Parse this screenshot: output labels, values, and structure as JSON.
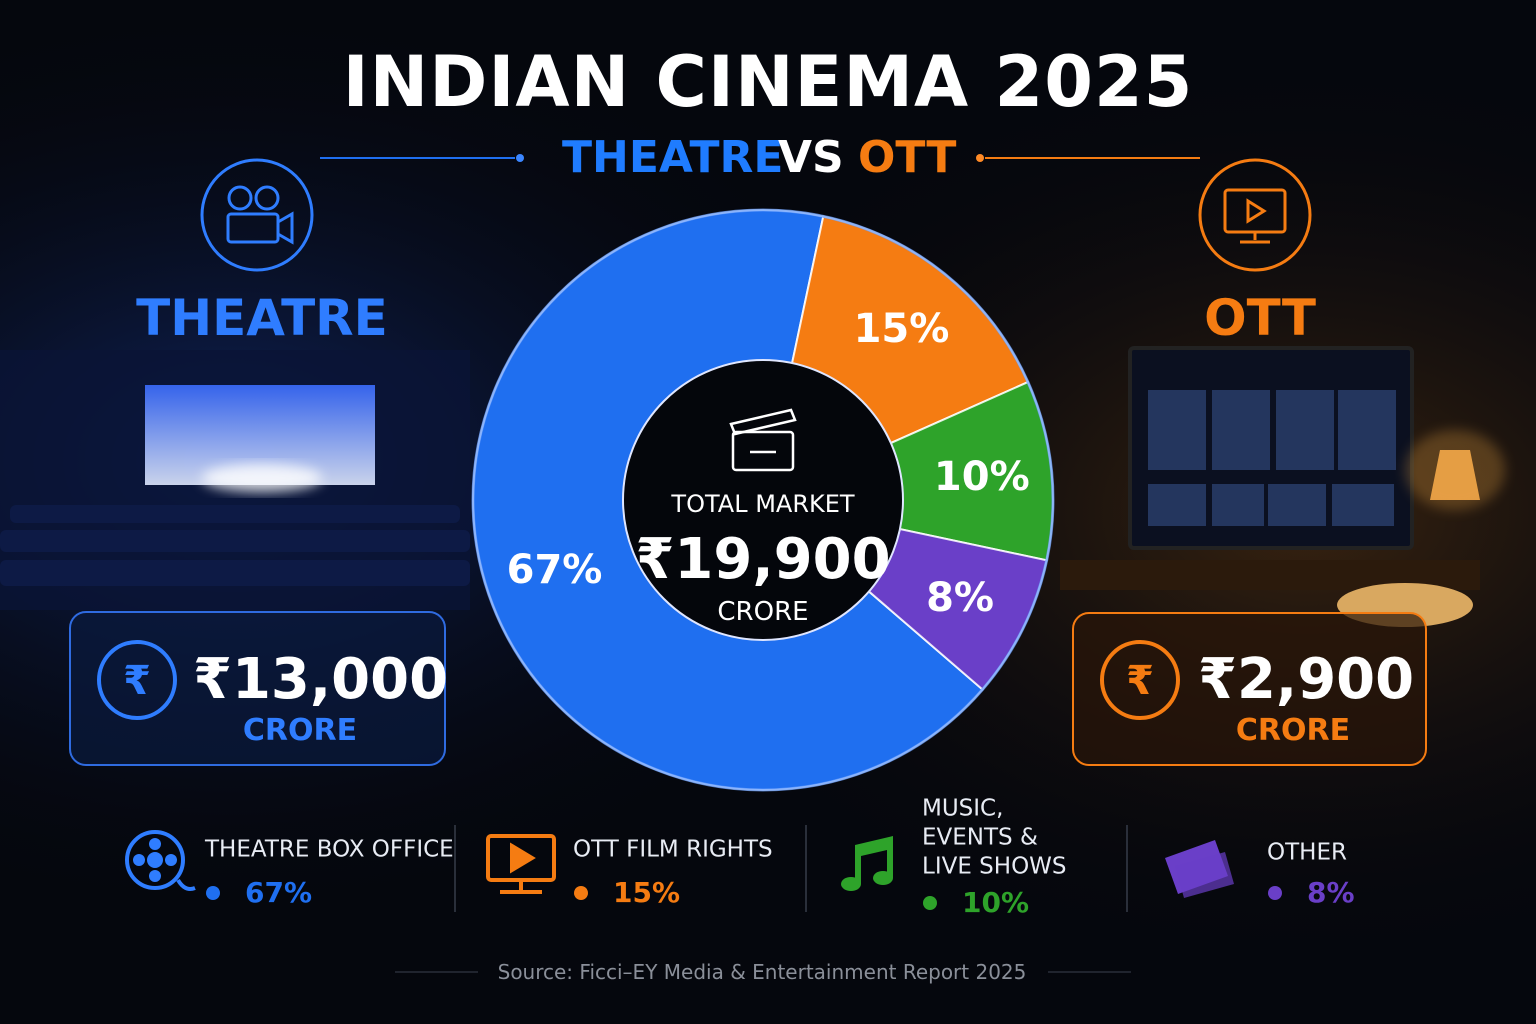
{
  "chart_data": {
    "type": "pie",
    "title": "INDIAN CINEMA 2025",
    "subtitle": [
      "THEATRE",
      "VS",
      "OTT"
    ],
    "categories": [
      "THEATRE BOX OFFICE",
      "OTT FILM RIGHTS",
      "MUSIC, EVENTS & LIVE SHOWS",
      "OTHER"
    ],
    "values": [
      67,
      15,
      10,
      8
    ],
    "value_labels": [
      "67%",
      "15%",
      "10%",
      "8%"
    ],
    "colors": [
      "#1f6ff0",
      "#f57c12",
      "#2ea32a",
      "#6a3fc8"
    ],
    "center": {
      "label": "TOTAL MARKET",
      "value": "₹19,900",
      "unit": "CRORE"
    }
  },
  "panels": [
    {
      "title": "THEATRE",
      "amount": "₹13,000",
      "unit": "CRORE"
    },
    {
      "title": "OTT",
      "amount": "₹2,900",
      "unit": "CRORE"
    }
  ],
  "source": "Source:  Ficci–EY Media & Entertainment Report 2025"
}
